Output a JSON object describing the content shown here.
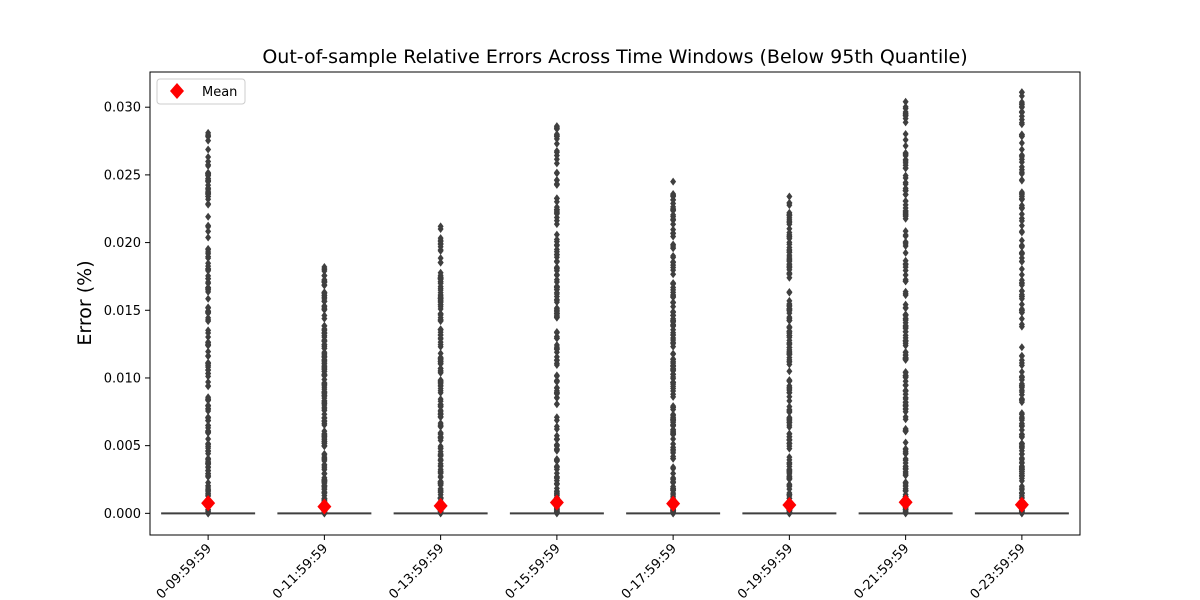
{
  "chart_data": {
    "type": "box",
    "title": "Out-of-sample Relative Errors Across Time Windows (Below 95th Quantile)",
    "xlabel": "",
    "ylabel": "Error (%)",
    "ylim": [
      -0.0016,
      0.0326
    ],
    "yticks": [
      "0.000",
      "0.005",
      "0.010",
      "0.015",
      "0.020",
      "0.025",
      "0.030"
    ],
    "ytick_values": [
      0.0,
      0.005,
      0.01,
      0.015,
      0.02,
      0.025,
      0.03
    ],
    "categories": [
      "0-09:59:59",
      "0-11:59:59",
      "0-13:59:59",
      "0-15:59:59",
      "0-17:59:59",
      "0-19:59:59",
      "0-21:59:59",
      "0-23:59:59"
    ],
    "means": [
      0.00075,
      0.0005,
      0.00055,
      0.0008,
      0.00072,
      0.00062,
      0.00082,
      0.00063
    ],
    "medians": [
      0.0,
      0.0,
      0.0,
      0.0,
      0.0,
      0.0,
      0.0,
      0.0
    ],
    "outlier_max": [
      0.0281,
      0.0182,
      0.0212,
      0.0286,
      0.0245,
      0.0234,
      0.0304,
      0.0311
    ],
    "legend": {
      "label": "Mean",
      "position": "upper-left"
    },
    "colors": {
      "mean_marker": "#ff0000",
      "box": "#3f3f3f",
      "outlier": "#3f3f3f"
    },
    "grid": false
  }
}
